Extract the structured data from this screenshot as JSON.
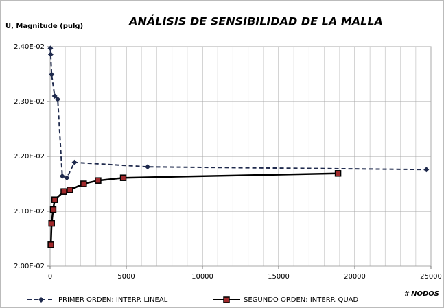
{
  "chart_data": {
    "type": "line",
    "title": "ANÁLISIS DE SENSIBILIDAD DE LA MALLA",
    "y_label": "U, Magnitude (pulg)",
    "x_label": "# NODOS",
    "xlim": [
      0,
      25000
    ],
    "xticks": [
      0,
      5000,
      10000,
      15000,
      20000,
      25000
    ],
    "ylim": [
      0.02,
      0.024
    ],
    "yticks": [
      {
        "value": 0.02,
        "label": "2.00E-02"
      },
      {
        "value": 0.021,
        "label": "2.10E-02"
      },
      {
        "value": 0.022,
        "label": "2.20E-02"
      },
      {
        "value": 0.023,
        "label": "2.30E-02"
      },
      {
        "value": 0.024,
        "label": "2.40E-02"
      }
    ],
    "grid": true,
    "legend": "bottom",
    "series": [
      {
        "name": "PRIMER ORDEN: INTERP. LINEAL",
        "color": "#1f2a4d",
        "dashed": true,
        "marker": "diamond",
        "x": [
          20,
          40,
          100,
          300,
          500,
          800,
          1100,
          1600,
          6400,
          24700
        ],
        "values": [
          0.02397,
          0.02386,
          0.02349,
          0.0231,
          0.02304,
          0.02164,
          0.02161,
          0.02189,
          0.02181,
          0.02176
        ]
      },
      {
        "name": "SEGUNDO ORDEN: INTERP. QUAD",
        "color": "#000000",
        "marker_color": "#a0292b",
        "dashed": false,
        "marker": "square",
        "x": [
          50,
          100,
          200,
          300,
          900,
          1300,
          2200,
          3150,
          4800,
          18900
        ],
        "values": [
          0.02039,
          0.02078,
          0.02103,
          0.02121,
          0.02136,
          0.02139,
          0.0215,
          0.02156,
          0.02161,
          0.02169
        ]
      }
    ]
  }
}
